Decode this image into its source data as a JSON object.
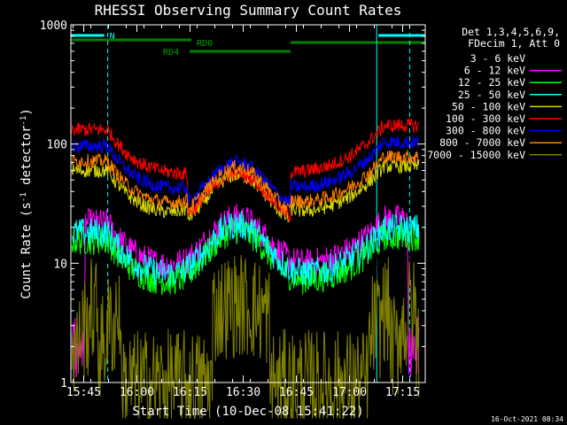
{
  "chart_data": {
    "type": "line",
    "title": "RHESSI Observing Summary Count Rates",
    "xlabel": "Start Time (10-Dec-08 15:41:22)",
    "ylabel_main": "Count Rate (s",
    "ylabel_sup1": "-1",
    "ylabel_mid": " detector",
    "ylabel_sup2": "-1",
    "ylabel_end": ")",
    "yscale": "log",
    "ylim": [
      1,
      1000
    ],
    "xlim_minutes": [
      0,
      100
    ],
    "x_ticks": [
      {
        "label": "15:45",
        "min": 3.63
      },
      {
        "label": "16:00",
        "min": 18.63
      },
      {
        "label": "16:15",
        "min": 33.63
      },
      {
        "label": "16:30",
        "min": 48.63
      },
      {
        "label": "16:45",
        "min": 63.63
      },
      {
        "label": "17:00",
        "min": 78.63
      },
      {
        "label": "17:15",
        "min": 93.63
      }
    ],
    "y_ticks": [
      {
        "label": "1",
        "value": 1
      },
      {
        "label": "10",
        "value": 10
      },
      {
        "label": "100",
        "value": 100
      },
      {
        "label": "1000",
        "value": 1000
      }
    ],
    "legend_header": [
      "Det 1,3,4,5,6,9,",
      "FDecim 1, Att 0"
    ],
    "series": [
      {
        "name": "3 - 6 keV",
        "color": "#000000"
      },
      {
        "name": "6 - 12 keV",
        "color": "#ff00ff"
      },
      {
        "name": "12 - 25 keV",
        "color": "#00ff00"
      },
      {
        "name": "25 - 50 keV",
        "color": "#00ffff"
      },
      {
        "name": "50 - 100 keV",
        "color": "#d8d800"
      },
      {
        "name": "100 - 300 keV",
        "color": "#ff0000"
      },
      {
        "name": "300 - 800 keV",
        "color": "#0000ff"
      },
      {
        "name": "800 - 7000 keV",
        "color": "#ff8000"
      },
      {
        "name": "7000 - 15000 keV",
        "color": "#808000"
      }
    ],
    "annotations": {
      "night_label": "N",
      "rd0_label": "RD0",
      "rd4_label": "RD4"
    },
    "footer_timestamp": "16-Oct-2021 08:34"
  }
}
